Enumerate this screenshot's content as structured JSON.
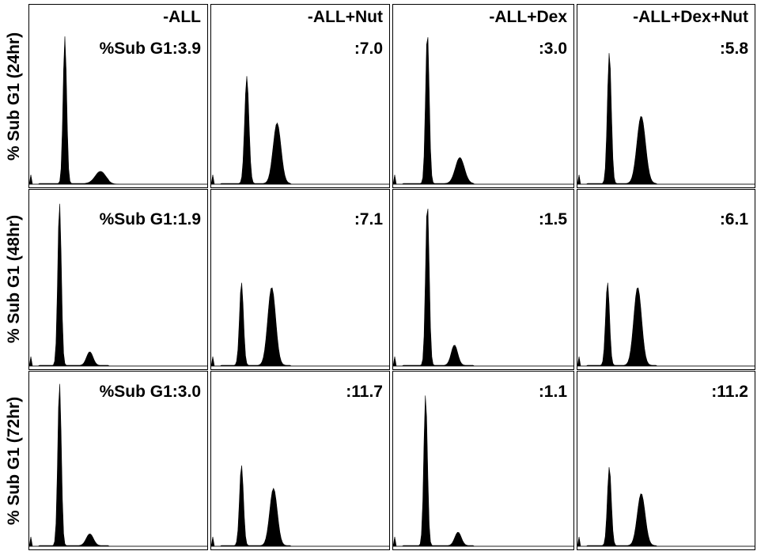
{
  "row_labels": [
    "% Sub G1 (24hr)",
    "% Sub G1 (48hr)",
    "% Sub G1 (72hr)"
  ],
  "column_titles": [
    "-ALL",
    "-ALL+Nut",
    "-ALL+Dex",
    "-ALL+Dex+Nut"
  ],
  "chart_data": [
    {
      "type": "area",
      "time": "24hr",
      "condition": "-ALL",
      "label": "%Sub G1:3.9",
      "sub_g1_percent": 3.9,
      "peaks": [
        {
          "mu": 0.2,
          "height": 0.85,
          "width": 0.01
        },
        {
          "mu": 0.4,
          "height": 0.07,
          "width": 0.03
        }
      ]
    },
    {
      "type": "area",
      "time": "24hr",
      "condition": "-ALL+Nut",
      "label": ":7.0",
      "sub_g1_percent": 7.0,
      "peaks": [
        {
          "mu": 0.2,
          "height": 0.62,
          "width": 0.012
        },
        {
          "mu": 0.37,
          "height": 0.35,
          "width": 0.022
        }
      ]
    },
    {
      "type": "area",
      "time": "24hr",
      "condition": "-ALL+Dex",
      "label": ":3.0",
      "sub_g1_percent": 3.0,
      "peaks": [
        {
          "mu": 0.19,
          "height": 0.88,
          "width": 0.01
        },
        {
          "mu": 0.37,
          "height": 0.15,
          "width": 0.025
        }
      ]
    },
    {
      "type": "area",
      "time": "24hr",
      "condition": "-ALL+Dex+Nut",
      "label": ":5.8",
      "sub_g1_percent": 5.8,
      "peaks": [
        {
          "mu": 0.18,
          "height": 0.76,
          "width": 0.011
        },
        {
          "mu": 0.36,
          "height": 0.39,
          "width": 0.024
        }
      ]
    },
    {
      "type": "area",
      "time": "48hr",
      "condition": "-ALL",
      "label": "%Sub G1:1.9",
      "sub_g1_percent": 1.9,
      "peaks": [
        {
          "mu": 0.17,
          "height": 0.96,
          "width": 0.01
        },
        {
          "mu": 0.34,
          "height": 0.08,
          "width": 0.018
        }
      ]
    },
    {
      "type": "area",
      "time": "48hr",
      "condition": "-ALL+Nut",
      "label": ":7.1",
      "sub_g1_percent": 7.1,
      "peaks": [
        {
          "mu": 0.17,
          "height": 0.49,
          "width": 0.011
        },
        {
          "mu": 0.34,
          "height": 0.46,
          "width": 0.022
        }
      ]
    },
    {
      "type": "area",
      "time": "48hr",
      "condition": "-ALL+Dex",
      "label": ":1.5",
      "sub_g1_percent": 1.5,
      "peaks": [
        {
          "mu": 0.19,
          "height": 0.96,
          "width": 0.01
        },
        {
          "mu": 0.34,
          "height": 0.12,
          "width": 0.018
        }
      ]
    },
    {
      "type": "area",
      "time": "48hr",
      "condition": "-ALL+Dex+Nut",
      "label": ":6.1",
      "sub_g1_percent": 6.1,
      "peaks": [
        {
          "mu": 0.17,
          "height": 0.49,
          "width": 0.011
        },
        {
          "mu": 0.34,
          "height": 0.46,
          "width": 0.022
        }
      ]
    },
    {
      "type": "area",
      "time": "72hr",
      "condition": "-ALL",
      "label": "%Sub G1:3.0",
      "sub_g1_percent": 3.0,
      "peaks": [
        {
          "mu": 0.17,
          "height": 0.97,
          "width": 0.01
        },
        {
          "mu": 0.34,
          "height": 0.07,
          "width": 0.02
        }
      ]
    },
    {
      "type": "area",
      "time": "72hr",
      "condition": "-ALL+Nut",
      "label": ":11.7",
      "sub_g1_percent": 11.7,
      "peaks": [
        {
          "mu": 0.17,
          "height": 0.48,
          "width": 0.011
        },
        {
          "mu": 0.35,
          "height": 0.34,
          "width": 0.021
        }
      ]
    },
    {
      "type": "area",
      "time": "72hr",
      "condition": "-ALL+Dex",
      "label": ":1.1",
      "sub_g1_percent": 1.1,
      "peaks": [
        {
          "mu": 0.18,
          "height": 0.9,
          "width": 0.01
        },
        {
          "mu": 0.36,
          "height": 0.08,
          "width": 0.018
        }
      ]
    },
    {
      "type": "area",
      "time": "72hr",
      "condition": "-ALL+Dex+Nut",
      "label": ":11.2",
      "sub_g1_percent": 11.2,
      "peaks": [
        {
          "mu": 0.18,
          "height": 0.47,
          "width": 0.011
        },
        {
          "mu": 0.36,
          "height": 0.31,
          "width": 0.022
        }
      ]
    }
  ]
}
